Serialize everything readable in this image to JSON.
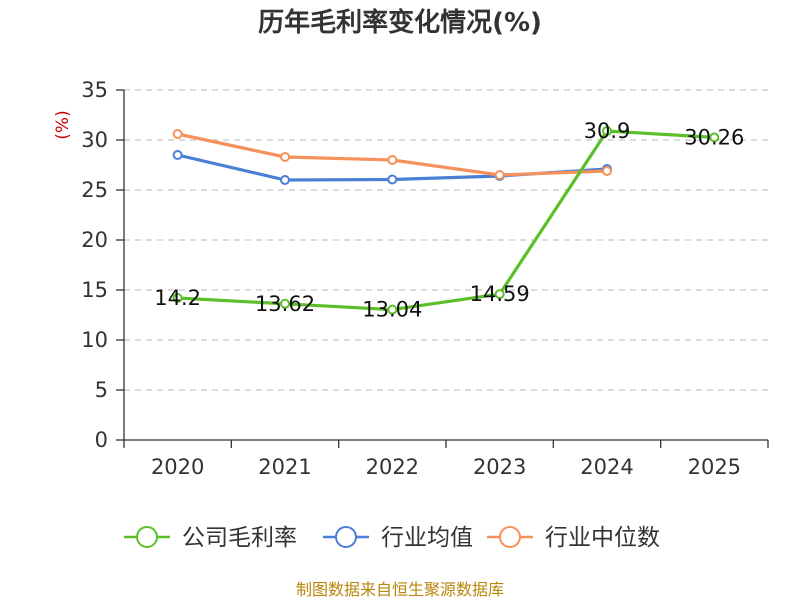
{
  "chart_data": {
    "type": "line",
    "title": "历年毛利率变化情况(%)",
    "ylabel": "(%)",
    "xlabel": "",
    "categories": [
      "2020",
      "2021",
      "2022",
      "2023",
      "2024",
      "2025"
    ],
    "ylim": [
      0,
      35
    ],
    "yticks": [
      0,
      5,
      10,
      15,
      20,
      25,
      30,
      35
    ],
    "grid": true,
    "legend_position": "bottom",
    "series": [
      {
        "name": "公司毛利率",
        "color": "#5cbf2a",
        "values": [
          14.2,
          13.62,
          13.04,
          14.59,
          30.9,
          30.26
        ],
        "data_labels": [
          "14.2",
          "13.62",
          "13.04",
          "14.59",
          "30.9",
          "30.26"
        ]
      },
      {
        "name": "行业均值",
        "color": "#4a7fd6",
        "values": [
          28.5,
          26.0,
          26.05,
          26.4,
          27.1,
          null
        ]
      },
      {
        "name": "行业中位数",
        "color": "#f5915a",
        "values": [
          30.6,
          28.3,
          28.0,
          26.5,
          26.9,
          null
        ]
      }
    ]
  },
  "source_text": "制图数据来自恒生聚源数据库"
}
